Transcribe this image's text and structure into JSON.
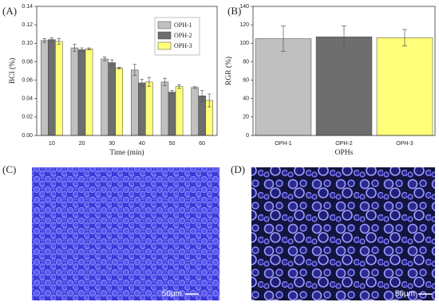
{
  "chart_data": [
    {
      "type": "bar",
      "panel": "(A)",
      "x_label": "Time (min)",
      "y_label": "BCI (%)",
      "categories": [
        "10",
        "20",
        "30",
        "40",
        "50",
        "60"
      ],
      "series": [
        {
          "name": "OPH-1",
          "color": "#c0c0c0",
          "values": [
            0.103,
            0.095,
            0.083,
            0.071,
            0.058,
            0.052
          ],
          "errors": [
            0.002,
            0.004,
            0.002,
            0.006,
            0.004,
            0.001
          ]
        },
        {
          "name": "OPH-2",
          "color": "#6e6e6e",
          "values": [
            0.104,
            0.093,
            0.079,
            0.057,
            0.047,
            0.043
          ],
          "errors": [
            0.002,
            0.002,
            0.003,
            0.004,
            0.002,
            0.006
          ]
        },
        {
          "name": "OPH-3",
          "color": "#ffff7a",
          "values": [
            0.102,
            0.094,
            0.073,
            0.058,
            0.053,
            0.038
          ],
          "errors": [
            0.003,
            0.001,
            0.001,
            0.005,
            0.002,
            0.007
          ]
        }
      ],
      "ylim": [
        0,
        0.14
      ],
      "yticks": [
        {
          "value": 0,
          "label": "0.00"
        },
        {
          "value": 0.02,
          "label": "0.02"
        },
        {
          "value": 0.04,
          "label": "0.04"
        },
        {
          "value": 0.06,
          "label": "0.06"
        },
        {
          "value": 0.08,
          "label": "0.08"
        },
        {
          "value": 0.1,
          "label": "0.10"
        },
        {
          "value": 0.12,
          "label": "0.12"
        },
        {
          "value": 0.14,
          "label": "0.14"
        }
      ],
      "legend": "upper right"
    },
    {
      "type": "bar",
      "panel": "(B)",
      "x_label": "OPHs",
      "y_label": "RGR (%)",
      "categories": [
        "OPH-1",
        "OPH-2",
        "OPH-3"
      ],
      "values": [
        105,
        107,
        106
      ],
      "errors": [
        14,
        12,
        9
      ],
      "colors": [
        "#c0c0c0",
        "#6e6e6e",
        "#ffff7a"
      ],
      "ylim": [
        0,
        140
      ],
      "yticks": [
        0,
        20,
        40,
        60,
        80,
        100,
        120,
        140
      ]
    }
  ],
  "images": [
    {
      "panel": "(C)",
      "scale_bar": "50μm"
    },
    {
      "panel": "(D)",
      "scale_bar": "50μm"
    }
  ]
}
